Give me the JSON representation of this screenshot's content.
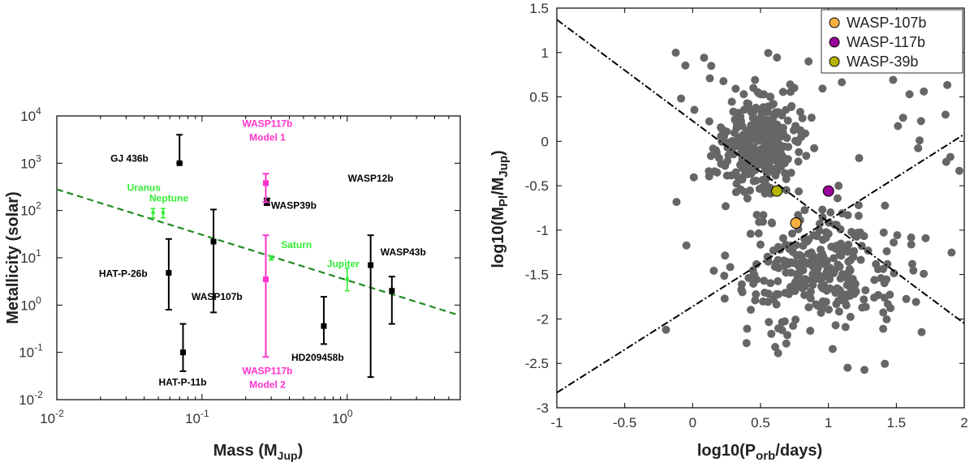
{
  "chart_data": [
    {
      "type": "scatter",
      "xscale": "log",
      "yscale": "log",
      "xlabel": "Mass (M",
      "xlabel_sub": "Jup",
      "xlabel_end": ")",
      "ylabel": "Metallicity (solar)",
      "xlim": [
        0.01,
        6
      ],
      "ylim": [
        0.01,
        10000
      ],
      "xticks": [
        {
          "value": 0.01,
          "base": "10",
          "exp": "-2"
        },
        {
          "value": 0.1,
          "base": "10",
          "exp": "-1"
        },
        {
          "value": 1,
          "base": "10",
          "exp": "0"
        }
      ],
      "yticks": [
        {
          "value": 0.01,
          "base": "10",
          "exp": "-2"
        },
        {
          "value": 0.1,
          "base": "10",
          "exp": "-1"
        },
        {
          "value": 1,
          "base": "10",
          "exp": "0"
        },
        {
          "value": 10,
          "base": "10",
          "exp": "1"
        },
        {
          "value": 100,
          "base": "10",
          "exp": "2"
        },
        {
          "value": 1000,
          "base": "10",
          "exp": "3"
        },
        {
          "value": 10000,
          "base": "10",
          "exp": "4"
        }
      ],
      "trend_line": {
        "x": [
          0.01,
          6
        ],
        "y": [
          280,
          0.6
        ],
        "color": "#228B22",
        "style": "dashed"
      },
      "exoplanets": [
        {
          "name": "GJ 436b",
          "mass": 0.07,
          "z": 1000,
          "lo": 1000,
          "hi": 4000
        },
        {
          "name": "WASP39b",
          "mass": 0.28,
          "z": 150,
          "lo": 130,
          "hi": 180
        },
        {
          "name": "HAT-P-26b",
          "mass": 0.059,
          "z": 4.8,
          "lo": 0.8,
          "hi": 25
        },
        {
          "name": "WASP107b",
          "mass": 0.12,
          "z": 22,
          "lo": 0.7,
          "hi": 105
        },
        {
          "name": "HAT-P-11b",
          "mass": 0.074,
          "z": 0.1,
          "lo": 0.04,
          "hi": 0.4
        },
        {
          "name": "HD209458b",
          "mass": 0.69,
          "z": 0.36,
          "lo": 0.15,
          "hi": 1.5
        },
        {
          "name": "WASP12b",
          "mass": 1.45,
          "z": 7,
          "lo": 0.03,
          "hi": 30
        },
        {
          "name": "WASP43b",
          "mass": 2.03,
          "z": 2,
          "lo": 0.4,
          "hi": 4
        }
      ],
      "solar_system": [
        {
          "name": "Uranus",
          "mass": 0.046,
          "z": 90,
          "lo": 70,
          "hi": 110
        },
        {
          "name": "Neptune",
          "mass": 0.054,
          "z": 90,
          "lo": 70,
          "hi": 110
        },
        {
          "name": "Saturn",
          "mass": 0.3,
          "z": 10,
          "lo": 9,
          "hi": 11
        },
        {
          "name": "Jupiter",
          "mass": 1.0,
          "z": 3.5,
          "lo": 2,
          "hi": 6
        }
      ],
      "wasp117_models": [
        {
          "name_line1": "WASP117b",
          "name_line2": "Model 1",
          "mass": 0.275,
          "z": 380,
          "lo": 150,
          "hi": 600
        },
        {
          "name_line1": "WASP117b",
          "name_line2": "Model 2",
          "mass": 0.275,
          "z": 3.5,
          "lo": 0.08,
          "hi": 30
        }
      ],
      "colors": {
        "exoplanet": "#000000",
        "solar_system": "#33ee33",
        "wasp117": "#ff33cc",
        "trend": "#228B22"
      }
    },
    {
      "type": "scatter",
      "xlabel": "log10(P",
      "xlabel_sub": "orb",
      "xlabel_end": "/days)",
      "ylabel": "log10(M",
      "ylabel_sub1": "Pl",
      "ylabel_mid": "/M",
      "ylabel_sub2": "Jup",
      "ylabel_end": ")",
      "xlim": [
        -1,
        2
      ],
      "ylim": [
        -3,
        1.5
      ],
      "xtick_labels": [
        "-1",
        "-0.5",
        "0",
        "0.5",
        "1",
        "1.5",
        "2"
      ],
      "xtick_values": [
        -1,
        -0.5,
        0,
        0.5,
        1,
        1.5,
        2
      ],
      "ytick_labels": [
        "-3",
        "-2.5",
        "-2",
        "-1.5",
        "-1",
        "-0.5",
        "0",
        "0.5",
        "1",
        "1.5"
      ],
      "ytick_values": [
        -3,
        -2.5,
        -2,
        -1.5,
        -1,
        -0.5,
        0,
        0.5,
        1,
        1.5
      ],
      "background_points_color": "#666666",
      "background_points_count": 650,
      "dividing_lines": [
        {
          "x": [
            -1,
            2
          ],
          "y": [
            1.37,
            -2.05
          ]
        },
        {
          "x": [
            -1,
            2
          ],
          "y": [
            -2.83,
            0.08
          ]
        }
      ],
      "highlighted": [
        {
          "name": "WASP-107b",
          "x": 0.76,
          "y": -0.92,
          "color": "#f5b041"
        },
        {
          "name": "WASP-117b",
          "x": 1.0,
          "y": -0.56,
          "color": "#990099"
        },
        {
          "name": "WASP-39b",
          "x": 0.62,
          "y": -0.56,
          "color": "#b5b500"
        }
      ],
      "legend": [
        "WASP-107b",
        "WASP-117b",
        "WASP-39b"
      ],
      "legend_position": "top-right"
    }
  ]
}
